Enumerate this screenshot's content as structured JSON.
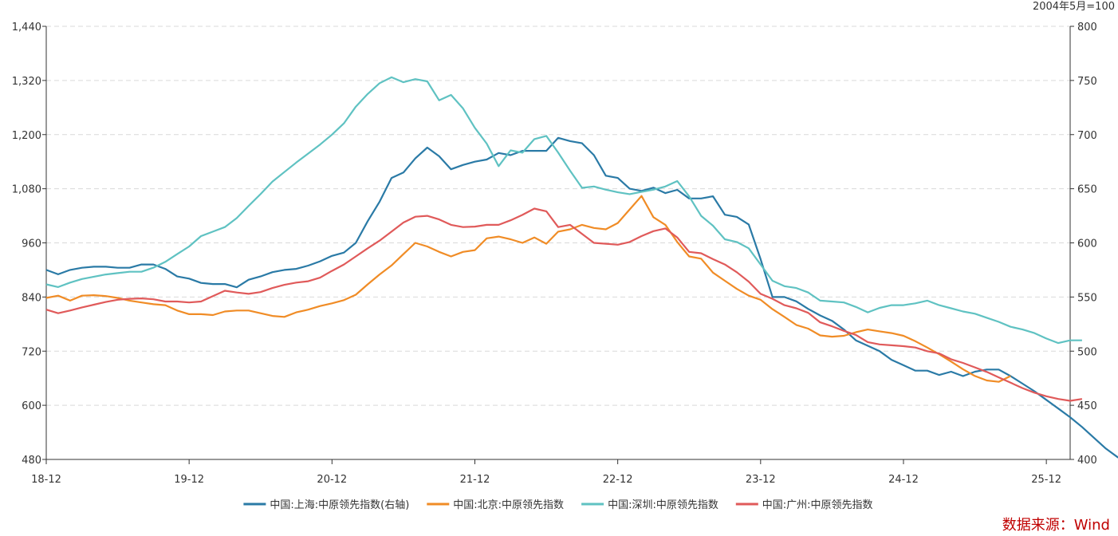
{
  "chart_data": {
    "type": "line",
    "unit_note": "2004年5月=100",
    "x_ticks": [
      "18-12",
      "19-12",
      "20-12",
      "21-12",
      "22-12",
      "23-12",
      "24-12",
      "25-12"
    ],
    "x_start": "2018-12",
    "x_end": "2026-02",
    "y_left": {
      "min": 480,
      "max": 1440,
      "ticks": [
        "480",
        "600",
        "720",
        "840",
        "960",
        "1,080",
        "1,200",
        "1,320",
        "1,440"
      ]
    },
    "y_right": {
      "min": 400,
      "max": 800,
      "ticks": [
        "400",
        "450",
        "500",
        "550",
        "600",
        "650",
        "700",
        "750",
        "800"
      ]
    },
    "grid": true,
    "legend_position": "bottom",
    "series": [
      {
        "name": "中国:上海:中原领先指数(右轴)",
        "axis": "right",
        "color": "#2a7aa6",
        "start": "2018-12",
        "values": [
          575,
          571,
          575,
          577,
          578,
          578,
          577,
          577,
          580,
          580,
          576,
          569,
          567,
          563,
          562,
          562,
          559,
          566,
          569,
          573,
          575,
          576,
          579,
          583,
          588,
          591,
          600,
          620,
          638,
          660,
          665,
          678,
          688,
          680,
          668,
          672,
          675,
          677,
          683,
          681,
          685,
          685,
          685,
          697,
          694,
          692,
          681,
          662,
          660,
          650,
          648,
          651,
          646,
          649,
          641,
          641,
          643,
          626,
          624,
          617,
          585,
          550,
          550,
          546,
          539,
          533,
          528,
          520,
          510,
          505,
          500,
          492,
          487,
          482,
          482,
          478,
          481,
          477,
          481,
          483,
          483,
          477,
          470,
          463,
          455,
          447,
          439,
          430,
          420,
          410,
          402,
          400,
          404,
          408
        ]
      },
      {
        "name": "中国:北京:中原领先指数",
        "axis": "left",
        "color": "#f08c26",
        "start": "2018-12",
        "values": [
          838,
          843,
          832,
          843,
          844,
          842,
          838,
          832,
          828,
          824,
          822,
          810,
          802,
          802,
          800,
          808,
          810,
          810,
          804,
          798,
          796,
          806,
          812,
          820,
          826,
          833,
          845,
          868,
          890,
          910,
          935,
          960,
          952,
          940,
          930,
          940,
          944,
          970,
          974,
          968,
          960,
          972,
          958,
          985,
          990,
          1000,
          993,
          990,
          1004,
          1034,
          1064,
          1017,
          1000,
          962,
          930,
          925,
          894,
          876,
          858,
          843,
          834,
          813,
          796,
          778,
          770,
          755,
          752,
          754,
          762,
          768,
          764,
          760,
          754,
          742,
          728,
          713,
          697,
          680,
          665,
          655,
          652,
          665
        ]
      },
      {
        "name": "中国:深圳:中原领先指数",
        "axis": "left",
        "color": "#5fc2c2",
        "start": "2018-12",
        "values": [
          868,
          862,
          872,
          880,
          885,
          890,
          893,
          896,
          896,
          905,
          918,
          935,
          952,
          975,
          985,
          995,
          1015,
          1042,
          1068,
          1096,
          1117,
          1138,
          1158,
          1178,
          1200,
          1225,
          1262,
          1290,
          1314,
          1327,
          1316,
          1323,
          1318,
          1276,
          1288,
          1258,
          1215,
          1180,
          1130,
          1165,
          1160,
          1190,
          1197,
          1160,
          1120,
          1082,
          1085,
          1078,
          1072,
          1068,
          1073,
          1078,
          1085,
          1097,
          1063,
          1020,
          998,
          968,
          962,
          948,
          912,
          876,
          864,
          860,
          850,
          832,
          830,
          828,
          818,
          806,
          816,
          822,
          822,
          826,
          832,
          822,
          815,
          808,
          803,
          794,
          785,
          774,
          768,
          760,
          748,
          738,
          744,
          744
        ]
      },
      {
        "name": "中国:广州:中原领先指数",
        "axis": "left",
        "color": "#e05a5a",
        "start": "2018-12",
        "values": [
          812,
          804,
          810,
          817,
          823,
          829,
          834,
          836,
          837,
          835,
          830,
          830,
          828,
          830,
          842,
          854,
          850,
          847,
          851,
          860,
          867,
          872,
          875,
          883,
          898,
          912,
          930,
          948,
          965,
          985,
          1005,
          1018,
          1020,
          1012,
          1000,
          995,
          996,
          1000,
          1000,
          1010,
          1022,
          1036,
          1030,
          995,
          1000,
          980,
          960,
          958,
          956,
          962,
          975,
          986,
          992,
          972,
          940,
          937,
          924,
          912,
          895,
          874,
          847,
          836,
          822,
          815,
          805,
          784,
          775,
          765,
          756,
          740,
          735,
          733,
          731,
          728,
          720,
          715,
          702,
          694,
          684,
          674,
          662,
          650,
          638,
          628,
          620,
          614,
          610,
          614
        ]
      }
    ]
  },
  "source": "数据来源：Wind"
}
